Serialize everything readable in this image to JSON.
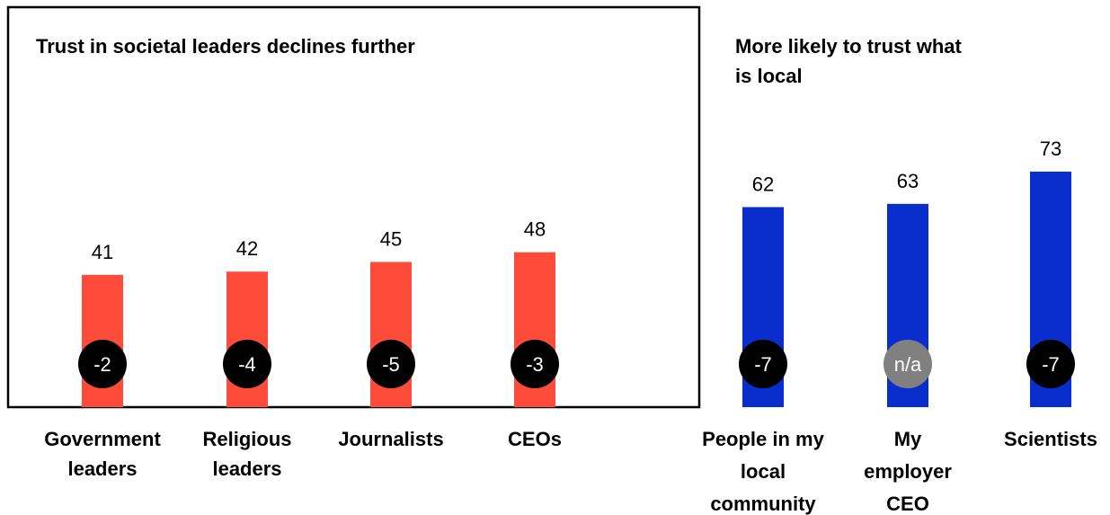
{
  "chart_data": [
    {
      "type": "bar",
      "title": "Trust in societal leaders declines further",
      "categories": [
        "Government leaders",
        "Religious leaders",
        "Journalists",
        "CEOs"
      ],
      "values": [
        41,
        42,
        45,
        48
      ],
      "changes": [
        "-2",
        "-4",
        "-5",
        "-3"
      ],
      "bar_color": "#ff4b3a",
      "badge_color": "#000000",
      "framed": true
    },
    {
      "type": "bar",
      "title": "More likely to trust what is local",
      "categories": [
        "People in my local community",
        "My employer CEO",
        "Scientists"
      ],
      "values": [
        62,
        63,
        73
      ],
      "changes": [
        "-7",
        "n/a",
        "-7"
      ],
      "bar_color": "#0a2ecc",
      "badge_color": "#000000",
      "na_badge_color": "#808080",
      "framed": false
    }
  ]
}
